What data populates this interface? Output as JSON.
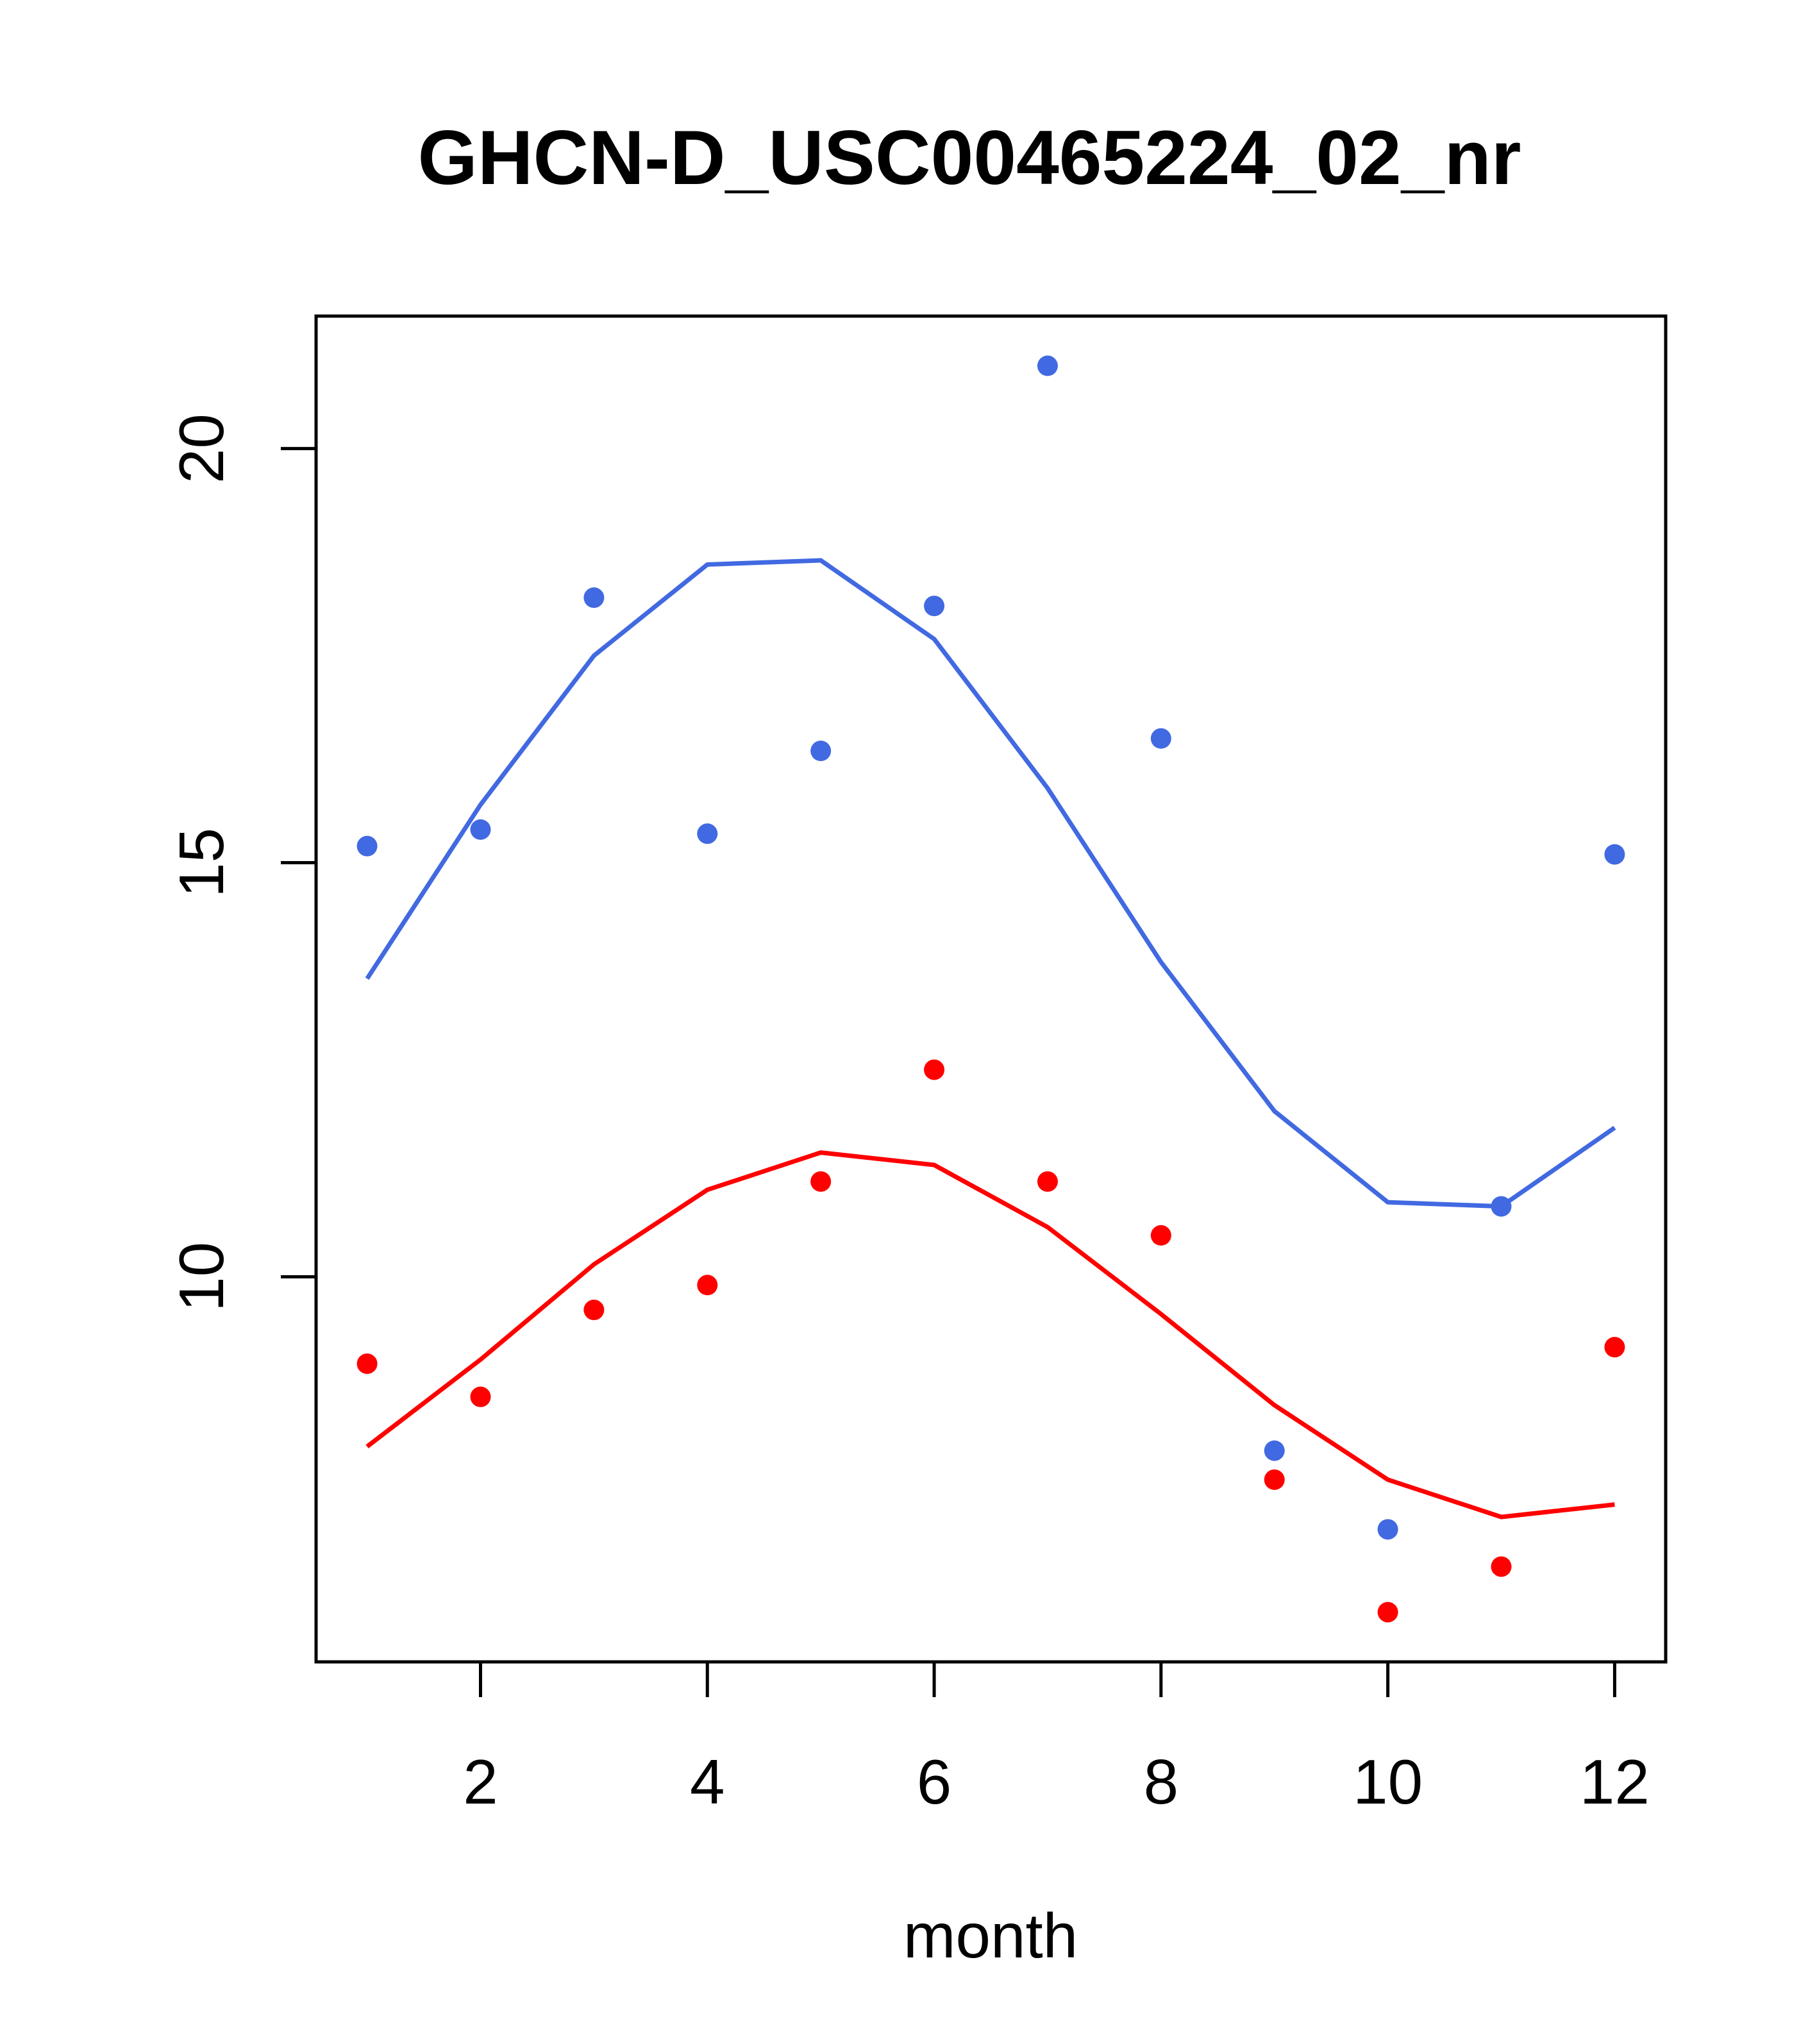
{
  "chart_data": {
    "type": "scatter",
    "title": "GHCN-D_USC00465224_02_nr",
    "xlabel": "month",
    "ylabel": "",
    "xlim": [
      0.55,
      12.45
    ],
    "ylim": [
      5.35,
      21.6
    ],
    "x_ticks": [
      "2",
      "4",
      "6",
      "8",
      "10",
      "12"
    ],
    "y_ticks": [
      "10",
      "15",
      "20"
    ],
    "grid": false,
    "legend": "none",
    "x": [
      1,
      2,
      3,
      4,
      5,
      6,
      7,
      8,
      9,
      10,
      11,
      12
    ],
    "series": [
      {
        "color": "#4169E1",
        "points": [
          15.2,
          15.4,
          18.2,
          15.35,
          16.35,
          18.1,
          21.0,
          16.5,
          7.9,
          6.95,
          10.85,
          15.1
        ],
        "line": [
          13.6,
          15.7,
          17.5,
          18.6,
          18.65,
          17.7,
          15.9,
          13.8,
          12.0,
          10.9,
          10.85,
          11.8
        ]
      },
      {
        "color": "#FF0000",
        "points": [
          8.95,
          8.55,
          9.6,
          9.9,
          11.15,
          12.5,
          11.15,
          10.5,
          7.55,
          5.95,
          6.5,
          9.15
        ],
        "line": [
          7.95,
          9.0,
          10.15,
          11.05,
          11.5,
          11.35,
          10.6,
          9.55,
          8.45,
          7.55,
          7.1,
          7.25
        ]
      }
    ]
  }
}
